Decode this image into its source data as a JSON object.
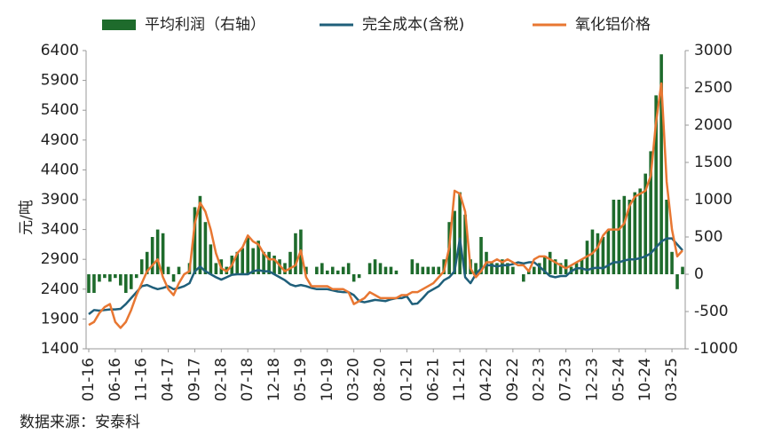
{
  "chart_data": {
    "type": "combo",
    "y_label": "元/吨",
    "source": "数据来源：安泰科",
    "categories": [
      "01-16",
      null,
      null,
      null,
      null,
      "06-16",
      null,
      null,
      null,
      null,
      "11-16",
      null,
      null,
      null,
      null,
      "04-17",
      null,
      null,
      null,
      null,
      "09-17",
      null,
      null,
      null,
      null,
      "02-18",
      null,
      null,
      null,
      null,
      "07-18",
      null,
      null,
      null,
      null,
      "12-18",
      null,
      null,
      null,
      null,
      "05-19",
      null,
      null,
      null,
      null,
      "10-19",
      null,
      null,
      null,
      null,
      "03-20",
      null,
      null,
      null,
      null,
      "08-20",
      null,
      null,
      null,
      null,
      "01-21",
      null,
      null,
      null,
      null,
      "06-21",
      null,
      null,
      null,
      null,
      "11-21",
      null,
      null,
      null,
      null,
      "04-22",
      null,
      null,
      null,
      null,
      "09-22",
      null,
      null,
      null,
      null,
      "02-23",
      null,
      null,
      null,
      null,
      "07-23",
      null,
      null,
      null,
      null,
      "12-23",
      null,
      null,
      null,
      null,
      "05-24",
      null,
      null,
      null,
      null,
      "10-24",
      null,
      null,
      null,
      null,
      "03-25",
      null,
      null
    ],
    "series": [
      {
        "name": "平均利润（右轴）",
        "type": "bar",
        "axis": "y2",
        "color": "#1e6b2c",
        "values": [
          -250,
          -250,
          -100,
          -50,
          -100,
          -50,
          -150,
          -250,
          -200,
          -50,
          200,
          300,
          500,
          600,
          550,
          100,
          -100,
          100,
          0,
          150,
          900,
          1050,
          700,
          400,
          150,
          200,
          100,
          250,
          300,
          350,
          500,
          350,
          450,
          300,
          300,
          250,
          200,
          150,
          300,
          550,
          600,
          100,
          0,
          100,
          150,
          50,
          100,
          50,
          100,
          150,
          -100,
          -50,
          0,
          150,
          200,
          150,
          100,
          100,
          50,
          0,
          0,
          200,
          150,
          100,
          100,
          100,
          100,
          200,
          700,
          850,
          1100,
          800,
          200,
          150,
          500,
          300,
          150,
          150,
          200,
          150,
          100,
          0,
          -100,
          50,
          100,
          150,
          250,
          300,
          200,
          150,
          200,
          100,
          150,
          200,
          450,
          600,
          550,
          500,
          600,
          1000,
          1000,
          1050,
          1000,
          1100,
          1150,
          1350,
          1650,
          2400,
          2950,
          1000,
          300,
          -200,
          100
        ]
      },
      {
        "name": "完全成本(含税)",
        "type": "line",
        "axis": "y",
        "color": "#1f5f7a",
        "values": [
          1980,
          2050,
          2040,
          2050,
          2060,
          2060,
          2070,
          2150,
          2250,
          2350,
          2450,
          2470,
          2430,
          2400,
          2420,
          2450,
          2400,
          2420,
          2450,
          2500,
          2700,
          2780,
          2700,
          2650,
          2600,
          2560,
          2600,
          2640,
          2650,
          2650,
          2650,
          2700,
          2720,
          2700,
          2700,
          2650,
          2600,
          2550,
          2480,
          2450,
          2470,
          2450,
          2420,
          2400,
          2400,
          2400,
          2380,
          2360,
          2350,
          2350,
          2300,
          2200,
          2180,
          2200,
          2220,
          2210,
          2200,
          2230,
          2250,
          2250,
          2280,
          2150,
          2160,
          2250,
          2350,
          2400,
          2450,
          2550,
          2600,
          2700,
          3250,
          2600,
          2500,
          2650,
          2750,
          2800,
          2800,
          2780,
          2800,
          2800,
          2820,
          2850,
          2830,
          2850,
          2850,
          2780,
          2700,
          2620,
          2600,
          2620,
          2620,
          2700,
          2750,
          2750,
          2720,
          2750,
          2760,
          2750,
          2800,
          2850,
          2850,
          2880,
          2900,
          2900,
          2920,
          2950,
          3000,
          3100,
          3200,
          3250,
          3250,
          3150,
          3050
        ]
      },
      {
        "name": "氧化铝价格",
        "type": "line",
        "axis": "y",
        "color": "#e87732",
        "values": [
          1800,
          1850,
          2000,
          2100,
          2150,
          1850,
          1750,
          1850,
          2050,
          2300,
          2500,
          2700,
          2800,
          2900,
          2600,
          2400,
          2300,
          2500,
          2650,
          2700,
          3500,
          3850,
          3700,
          3400,
          3000,
          2750,
          2700,
          2800,
          3000,
          3100,
          3300,
          3200,
          3150,
          3000,
          2900,
          2900,
          2800,
          2700,
          2750,
          2800,
          3050,
          2600,
          2450,
          2450,
          2450,
          2450,
          2400,
          2400,
          2400,
          2350,
          2150,
          2200,
          2250,
          2350,
          2300,
          2250,
          2250,
          2250,
          2250,
          2300,
          2300,
          2350,
          2350,
          2400,
          2450,
          2500,
          2600,
          2700,
          3100,
          4050,
          4000,
          3700,
          2750,
          2600,
          2700,
          2850,
          2850,
          2900,
          2850,
          2900,
          2850,
          2800,
          2800,
          2700,
          2900,
          2950,
          2950,
          2900,
          2850,
          2800,
          2750,
          2800,
          2850,
          2900,
          2950,
          3000,
          3100,
          3300,
          3400,
          3400,
          3400,
          3500,
          3800,
          3950,
          4000,
          4050,
          4300,
          5200,
          5850,
          4200,
          3400,
          2950,
          3050
        ]
      }
    ],
    "ylim": [
      1400,
      6400
    ],
    "yticks": [
      1400,
      1900,
      2400,
      2900,
      3400,
      3900,
      4400,
      4900,
      5400,
      5900,
      6400
    ],
    "y2lim": [
      -1000,
      3000
    ],
    "y2ticks": [
      -1000,
      -500,
      0,
      500,
      1000,
      1500,
      2000,
      2500,
      3000
    ]
  }
}
